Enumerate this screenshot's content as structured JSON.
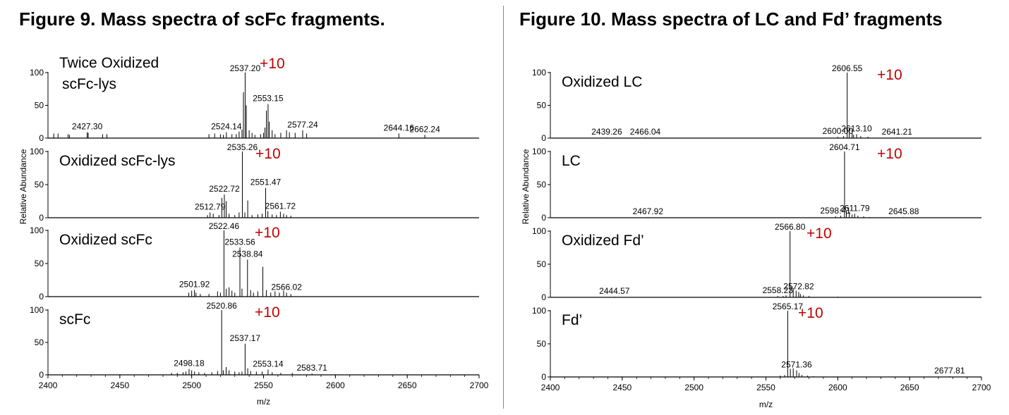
{
  "titles": {
    "left": "Figure 9. Mass spectra of scFc fragments.",
    "right": "Figure 10. Mass spectra of LC and Fd’ fragments"
  },
  "colors": {
    "trace": "#000000",
    "charge": "#c00000",
    "annotation_line": "#6abf69",
    "divider": "#5b8fd0"
  },
  "chart_data": [
    {
      "type": "line",
      "title": "Figure 9. Mass spectra of scFc fragments.",
      "xlabel": "m/z",
      "ylabel": "Relative Abundance",
      "xlim": [
        2400,
        2700
      ],
      "ylim": [
        0,
        100
      ],
      "x_ticks": [
        2400,
        2450,
        2500,
        2550,
        2600,
        2650,
        2700
      ],
      "y_ticks": [
        0,
        50,
        100
      ],
      "panels": [
        {
          "name": "Twice Oxidized scFc-lys",
          "name_lines": [
            "Twice Oxidized",
            "scFc-lys"
          ],
          "charge_label": "+10",
          "peaks": [
            [
              2404,
              7
            ],
            [
              2407,
              7
            ],
            [
              2414,
              6
            ],
            [
              2415,
              5
            ],
            [
              2427.3,
              9
            ],
            [
              2428,
              8
            ],
            [
              2438,
              6
            ],
            [
              2441,
              6
            ],
            [
              2512,
              6
            ],
            [
              2516,
              7
            ],
            [
              2520,
              6
            ],
            [
              2522,
              5
            ],
            [
              2524.14,
              9
            ],
            [
              2528,
              6
            ],
            [
              2531,
              6
            ],
            [
              2533,
              10
            ],
            [
              2535,
              13
            ],
            [
              2536,
              70
            ],
            [
              2537.2,
              100
            ],
            [
              2538,
              50
            ],
            [
              2540,
              12
            ],
            [
              2542,
              8
            ],
            [
              2544,
              5
            ],
            [
              2548,
              6
            ],
            [
              2550,
              8
            ],
            [
              2551,
              16
            ],
            [
              2552,
              42
            ],
            [
              2553.15,
              52
            ],
            [
              2554,
              25
            ],
            [
              2556,
              12
            ],
            [
              2558,
              6
            ],
            [
              2562,
              8
            ],
            [
              2566,
              12
            ],
            [
              2568,
              9
            ],
            [
              2572,
              8
            ],
            [
              2577.24,
              12
            ],
            [
              2580,
              7
            ],
            [
              2644.16,
              7
            ],
            [
              2662.24,
              5
            ]
          ],
          "labels": [
            {
              "x": 2427.3,
              "text": "2427.30"
            },
            {
              "x": 2524.14,
              "text": "2524.14"
            },
            {
              "x": 2537.2,
              "text": "2537.20"
            },
            {
              "x": 2553.15,
              "text": "2553.15"
            },
            {
              "x": 2577.24,
              "text": "2577.24"
            },
            {
              "x": 2644.16,
              "text": "2644.16"
            },
            {
              "x": 2662.24,
              "text": "2662.24"
            }
          ]
        },
        {
          "name": "Oxidized scFc-lys",
          "name_lines": [
            "Oxidized scFc-lys"
          ],
          "charge_label": "+10",
          "peaks": [
            [
              2511,
              4
            ],
            [
              2512.79,
              8
            ],
            [
              2515,
              6
            ],
            [
              2519,
              4
            ],
            [
              2521,
              30
            ],
            [
              2522.72,
              35
            ],
            [
              2524,
              25
            ],
            [
              2526,
              6
            ],
            [
              2530,
              4
            ],
            [
              2533,
              8
            ],
            [
              2535.26,
              100
            ],
            [
              2537,
              8
            ],
            [
              2539,
              26
            ],
            [
              2542,
              4
            ],
            [
              2546,
              5
            ],
            [
              2549,
              6
            ],
            [
              2551.47,
              45
            ],
            [
              2553,
              10
            ],
            [
              2556,
              5
            ],
            [
              2559,
              4
            ],
            [
              2561.72,
              9
            ],
            [
              2564,
              6
            ],
            [
              2566,
              4
            ],
            [
              2569,
              3
            ]
          ],
          "labels": [
            {
              "x": 2512.79,
              "text": "2512.79"
            },
            {
              "x": 2522.72,
              "text": "2522.72"
            },
            {
              "x": 2535.26,
              "text": "2535.26"
            },
            {
              "x": 2551.47,
              "text": "2551.47"
            },
            {
              "x": 2561.72,
              "text": "2561.72"
            }
          ]
        },
        {
          "name": "Oxidized scFc",
          "name_lines": [
            "Oxidized scFc"
          ],
          "charge_label": "+10",
          "peaks": [
            [
              2498,
              6
            ],
            [
              2500,
              9
            ],
            [
              2501.92,
              10
            ],
            [
              2503,
              6
            ],
            [
              2506,
              4
            ],
            [
              2512,
              4
            ],
            [
              2518,
              8
            ],
            [
              2520,
              6
            ],
            [
              2522.46,
              100
            ],
            [
              2524,
              12
            ],
            [
              2526,
              14
            ],
            [
              2528,
              9
            ],
            [
              2530,
              6
            ],
            [
              2533.56,
              74
            ],
            [
              2535,
              12
            ],
            [
              2538.84,
              56
            ],
            [
              2541,
              10
            ],
            [
              2543,
              6
            ],
            [
              2546,
              8
            ],
            [
              2549.5,
              45
            ],
            [
              2552,
              10
            ],
            [
              2555,
              6
            ],
            [
              2558,
              8
            ],
            [
              2561,
              6
            ],
            [
              2564,
              9
            ],
            [
              2566.02,
              6
            ],
            [
              2569,
              4
            ]
          ],
          "labels": [
            {
              "x": 2501.92,
              "text": "2501.92"
            },
            {
              "x": 2522.46,
              "text": "2522.46"
            },
            {
              "x": 2533.56,
              "text": "2533.56"
            },
            {
              "x": 2538.84,
              "text": "2538.84"
            },
            {
              "x": 2566.02,
              "text": "2566.02"
            }
          ]
        },
        {
          "name": "scFc",
          "name_lines": [
            "scFc"
          ],
          "charge_label": "+10",
          "peaks": [
            [
              2486,
              3
            ],
            [
              2490,
              3
            ],
            [
              2494,
              4
            ],
            [
              2496,
              5
            ],
            [
              2498.18,
              9
            ],
            [
              2500,
              7
            ],
            [
              2502,
              5
            ],
            [
              2505,
              4
            ],
            [
              2509,
              3
            ],
            [
              2514,
              4
            ],
            [
              2518,
              6
            ],
            [
              2520.86,
              100
            ],
            [
              2522,
              7
            ],
            [
              2524,
              12
            ],
            [
              2526,
              7
            ],
            [
              2530,
              5
            ],
            [
              2533,
              4
            ],
            [
              2535,
              5
            ],
            [
              2537.17,
              48
            ],
            [
              2539,
              10
            ],
            [
              2541,
              6
            ],
            [
              2545,
              5
            ],
            [
              2549,
              5
            ],
            [
              2553.14,
              8
            ],
            [
              2556,
              4
            ],
            [
              2562,
              3
            ],
            [
              2570,
              3
            ],
            [
              2583.71,
              2
            ]
          ],
          "labels": [
            {
              "x": 2498.18,
              "text": "2498.18"
            },
            {
              "x": 2520.86,
              "text": "2520.86"
            },
            {
              "x": 2537.17,
              "text": "2537.17"
            },
            {
              "x": 2553.14,
              "text": "2553.14"
            },
            {
              "x": 2583.71,
              "text": "2583.71"
            }
          ]
        }
      ]
    },
    {
      "type": "line",
      "title": "Figure 10. Mass spectra of LC and Fd’ fragments",
      "xlabel": "m/z",
      "ylabel": "Relative Abundance",
      "xlim": [
        2400,
        2700
      ],
      "ylim": [
        0,
        100
      ],
      "x_ticks": [
        2400,
        2450,
        2500,
        2550,
        2600,
        2650,
        2700
      ],
      "y_ticks": [
        0,
        50,
        100
      ],
      "panels": [
        {
          "name": "Oxidized LC",
          "name_lines": [
            "Oxidized LC"
          ],
          "charge_label": "+10",
          "peaks": [
            [
              2439.26,
              1
            ],
            [
              2466.04,
              1
            ],
            [
              2600,
              2
            ],
            [
              2604,
              3
            ],
            [
              2606.55,
              100
            ],
            [
              2608,
              10
            ],
            [
              2610,
              8
            ],
            [
              2611,
              5
            ],
            [
              2613.1,
              6
            ],
            [
              2616,
              3
            ],
            [
              2621,
              2
            ],
            [
              2641.21,
              1
            ]
          ],
          "labels": [
            {
              "x": 2439.26,
              "text": "2439.26"
            },
            {
              "x": 2466.04,
              "text": "2466.04"
            },
            {
              "x": 2600.0,
              "text": "2600.00"
            },
            {
              "x": 2606.55,
              "text": "2606.55"
            },
            {
              "x": 2613.1,
              "text": "2613.10"
            },
            {
              "x": 2641.21,
              "text": "2641.21"
            }
          ]
        },
        {
          "name": "LC",
          "name_lines": [
            "LC"
          ],
          "charge_label": "+10",
          "peaks": [
            [
              2467.92,
              1
            ],
            [
              2598.41,
              2
            ],
            [
              2602,
              3
            ],
            [
              2604.71,
              100
            ],
            [
              2606,
              10
            ],
            [
              2608,
              8
            ],
            [
              2610,
              5
            ],
            [
              2611.79,
              6
            ],
            [
              2614,
              3
            ],
            [
              2618,
              2
            ],
            [
              2622,
              1
            ],
            [
              2645.88,
              1
            ]
          ],
          "labels": [
            {
              "x": 2467.92,
              "text": "2467.92"
            },
            {
              "x": 2598.41,
              "text": "2598.41"
            },
            {
              "x": 2604.71,
              "text": "2604.71"
            },
            {
              "x": 2611.79,
              "text": "2611.79"
            },
            {
              "x": 2645.88,
              "text": "2645.88"
            }
          ]
        },
        {
          "name": "Oxidized Fd’",
          "name_lines": [
            "Oxidized Fd’"
          ],
          "charge_label": "+10",
          "peaks": [
            [
              2444.57,
              1
            ],
            [
              2558.23,
              2
            ],
            [
              2562,
              2
            ],
            [
              2564,
              3
            ],
            [
              2566.8,
              100
            ],
            [
              2569,
              14
            ],
            [
              2571,
              10
            ],
            [
              2572.82,
              8
            ],
            [
              2574,
              5
            ],
            [
              2576,
              3
            ],
            [
              2580,
              2
            ],
            [
              2600,
              1
            ]
          ],
          "labels": [
            {
              "x": 2444.57,
              "text": "2444.57"
            },
            {
              "x": 2558.23,
              "text": "2558.23"
            },
            {
              "x": 2566.8,
              "text": "2566.80"
            },
            {
              "x": 2572.82,
              "text": "2572.82"
            }
          ]
        },
        {
          "name": "Fd’",
          "name_lines": [
            "Fd’"
          ],
          "charge_label": "+10",
          "peaks": [
            [
              2560,
              2
            ],
            [
              2563,
              3
            ],
            [
              2565.17,
              100
            ],
            [
              2567,
              12
            ],
            [
              2569,
              13
            ],
            [
              2571.36,
              10
            ],
            [
              2573,
              6
            ],
            [
              2575,
              3
            ],
            [
              2579,
              2
            ],
            [
              2583,
              1
            ],
            [
              2677.81,
              1
            ]
          ],
          "labels": [
            {
              "x": 2565.17,
              "text": "2565.17"
            },
            {
              "x": 2571.36,
              "text": "2571.36"
            },
            {
              "x": 2677.81,
              "text": "2677.81"
            }
          ]
        }
      ]
    }
  ]
}
